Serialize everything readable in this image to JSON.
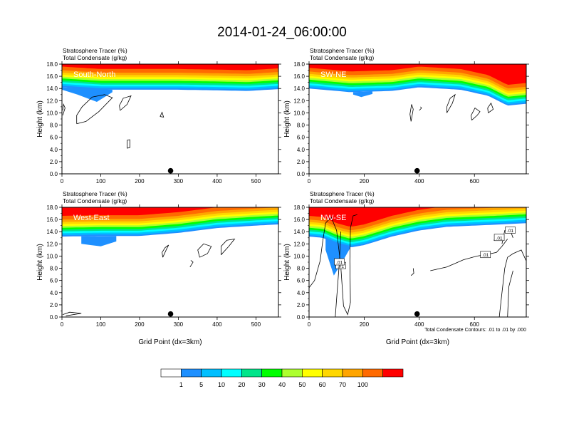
{
  "figure": {
    "title": "2014-01-24_06:00:00"
  },
  "chart_data": [
    {
      "type": "heatmap",
      "panel_label": "South-North",
      "left_title_1": "Stratosphere Tracer   (%)",
      "left_title_2": "Total Condensate   (g/kg)",
      "ylabel": "Height (km)",
      "xlabel": "",
      "xlim": [
        0,
        558
      ],
      "ylim": [
        0,
        18
      ],
      "xticks": [
        0,
        100,
        200,
        300,
        400,
        500
      ],
      "yticks": [
        0.0,
        2.0,
        4.0,
        6.0,
        8.0,
        10.0,
        12.0,
        14.0,
        16.0,
        18.0
      ],
      "marker_x": 280,
      "tracer_bands_km": {
        "x": [
          0,
          100,
          200,
          300,
          400,
          480,
          558
        ],
        "base": [
          14.2,
          13.8,
          13.8,
          13.8,
          13.7,
          13.6,
          13.9
        ]
      },
      "blue_patch_top_km": [
        {
          "x": [
            0,
            40,
            90,
            130
          ],
          "y": [
            13.8,
            13.0,
            11.8,
            13.4
          ]
        }
      ],
      "contours": [
        {
          "label": "",
          "points": [
            [
              38,
              8.2
            ],
            [
              62,
              8.6
            ],
            [
              95,
              10.2
            ],
            [
              130,
              12.5
            ],
            [
              110,
              13.0
            ],
            [
              78,
              12.6
            ],
            [
              52,
              11.0
            ],
            [
              38,
              9.6
            ],
            [
              38,
              8.2
            ]
          ]
        },
        {
          "label": "",
          "points": [
            [
              150,
              10.4
            ],
            [
              168,
              11.4
            ],
            [
              178,
              12.8
            ],
            [
              158,
              12.4
            ],
            [
              148,
              11.2
            ],
            [
              150,
              10.4
            ]
          ]
        },
        {
          "label": "",
          "points": [
            [
              253,
              9.4
            ],
            [
              258,
              10.1
            ],
            [
              262,
              9.3
            ],
            [
              253,
              9.4
            ]
          ]
        },
        {
          "label": "",
          "points": [
            [
              168,
              4.2
            ],
            [
              175,
              4.3
            ],
            [
              175,
              5.6
            ],
            [
              168,
              5.5
            ],
            [
              168,
              4.2
            ]
          ]
        },
        {
          "label": "",
          "points": [
            [
              2,
              9.6
            ],
            [
              8,
              10.8
            ],
            [
              4,
              11.4
            ],
            [
              2,
              10.4
            ]
          ]
        }
      ]
    },
    {
      "type": "heatmap",
      "panel_label": "SW-NE",
      "left_title_1": "Stratosphere Tracer   (%)",
      "left_title_2": "Total Condensate   (g/kg)",
      "ylabel": "Height (km)",
      "xlabel": "",
      "xlim": [
        0,
        788
      ],
      "ylim": [
        0,
        18
      ],
      "xticks": [
        0,
        200,
        400,
        600
      ],
      "yticks": [
        0.0,
        2.0,
        4.0,
        6.0,
        8.0,
        10.0,
        12.0,
        14.0,
        16.0,
        18.0
      ],
      "marker_x": 392,
      "tracer_bands_km": {
        "x": [
          0,
          150,
          300,
          400,
          550,
          650,
          720,
          788
        ],
        "base": [
          14.0,
          13.4,
          13.6,
          14.2,
          13.8,
          12.8,
          11.2,
          11.5
        ]
      },
      "blue_patch_top_km": [
        {
          "x": [
            160,
            190,
            230
          ],
          "y": [
            13.0,
            12.6,
            13.1
          ]
        }
      ],
      "contours": [
        {
          "label": "",
          "points": [
            [
              370,
              8.6
            ],
            [
              378,
              10.6
            ],
            [
              372,
              11.4
            ],
            [
              366,
              9.8
            ],
            [
              370,
              8.6
            ]
          ]
        },
        {
          "label": "",
          "points": [
            [
              400,
              10.4
            ],
            [
              408,
              10.8
            ],
            [
              404,
              11.0
            ]
          ]
        },
        {
          "label": "",
          "points": [
            [
              500,
              10.0
            ],
            [
              520,
              11.6
            ],
            [
              530,
              13.0
            ],
            [
              512,
              12.4
            ],
            [
              500,
              11.0
            ],
            [
              500,
              10.0
            ]
          ]
        },
        {
          "label": "",
          "points": [
            [
              590,
              8.8
            ],
            [
              610,
              9.6
            ],
            [
              620,
              10.2
            ],
            [
              602,
              10.8
            ],
            [
              588,
              9.6
            ],
            [
              590,
              8.8
            ]
          ]
        },
        {
          "label": "",
          "points": [
            [
              650,
              10.0
            ],
            [
              668,
              10.6
            ],
            [
              660,
              11.6
            ],
            [
              648,
              10.8
            ],
            [
              650,
              10.0
            ]
          ]
        }
      ]
    },
    {
      "type": "heatmap",
      "panel_label": "West-East",
      "left_title_1": "Stratosphere Tracer   (%)",
      "left_title_2": "Total Condensate   (g/kg)",
      "ylabel": "Height (km)",
      "xlabel": "Grid Point (dx=3km)",
      "xlim": [
        0,
        558
      ],
      "ylim": [
        0,
        18
      ],
      "xticks": [
        0,
        100,
        200,
        300,
        400,
        500
      ],
      "yticks": [
        0.0,
        2.0,
        4.0,
        6.0,
        8.0,
        10.0,
        12.0,
        14.0,
        16.0,
        18.0
      ],
      "marker_x": 280,
      "tracer_bands_km": {
        "x": [
          0,
          100,
          200,
          300,
          400,
          500,
          558
        ],
        "base": [
          13.2,
          13.3,
          13.3,
          13.8,
          14.6,
          15.0,
          15.2
        ]
      },
      "blue_patch_top_km": [
        {
          "x": [
            50,
            100,
            140
          ],
          "y": [
            12.0,
            11.6,
            12.4
          ]
        }
      ],
      "contours": [
        {
          "label": "",
          "points": [
            [
              260,
              9.8
            ],
            [
              270,
              11.2
            ],
            [
              275,
              11.8
            ],
            [
              266,
              11.4
            ],
            [
              258,
              10.6
            ],
            [
              260,
              9.8
            ]
          ]
        },
        {
          "label": "",
          "points": [
            [
              355,
              9.8
            ],
            [
              375,
              10.4
            ],
            [
              385,
              11.6
            ],
            [
              365,
              12.0
            ],
            [
              350,
              11.0
            ],
            [
              355,
              9.8
            ]
          ]
        },
        {
          "label": "",
          "points": [
            [
              410,
              10.2
            ],
            [
              430,
              11.6
            ],
            [
              445,
              12.8
            ],
            [
              425,
              12.6
            ],
            [
              410,
              11.6
            ],
            [
              410,
              10.2
            ]
          ]
        },
        {
          "label": "",
          "points": [
            [
              330,
              8.2
            ],
            [
              338,
              9.0
            ],
            [
              332,
              9.3
            ]
          ]
        },
        {
          "label": "",
          "points": [
            [
              2,
              0.4
            ],
            [
              20,
              0.8
            ],
            [
              50,
              0.6
            ],
            [
              10,
              0.2
            ]
          ]
        }
      ]
    },
    {
      "type": "heatmap",
      "panel_label": "NW-SE",
      "left_title_1": "Stratosphere Tracer   (%)",
      "left_title_2": "Total Condensate   (g/kg)",
      "ylabel": "Height (km)",
      "xlabel": "Grid Point (dx=3km)",
      "xlim": [
        0,
        788
      ],
      "ylim": [
        0,
        18
      ],
      "xticks": [
        0,
        200,
        400,
        600
      ],
      "yticks": [
        0.0,
        2.0,
        4.0,
        6.0,
        8.0,
        10.0,
        12.0,
        14.0,
        16.0,
        18.0
      ],
      "marker_x": 392,
      "tracer_bands_km": {
        "x": [
          0,
          50,
          100,
          150,
          200,
          300,
          400,
          500,
          600,
          700,
          788
        ],
        "base": [
          13.2,
          13.0,
          12.0,
          11.4,
          11.8,
          13.2,
          14.2,
          14.8,
          15.0,
          15.2,
          15.4
        ]
      },
      "blue_patch_top_km": [
        {
          "x": [
            60,
            90,
            120,
            150
          ],
          "y": [
            11.0,
            6.8,
            9.0,
            11.4
          ]
        }
      ],
      "footnote": "Total Condensate Contours: .01 to .01 by .000",
      "contour_labels": [
        ".01",
        ".01",
        ".01",
        ".01",
        ".01"
      ],
      "contours": [
        {
          "label": ".01",
          "points": [
            [
              0,
              4.8
            ],
            [
              20,
              6.0
            ],
            [
              40,
              9.2
            ],
            [
              50,
              12.6
            ],
            [
              60,
              15.4
            ],
            [
              80,
              16.4
            ],
            [
              100,
              14.2
            ],
            [
              115,
              8.4
            ],
            [
              125,
              1.8
            ],
            [
              140,
              0.4
            ],
            [
              150,
              2.4
            ],
            [
              148,
              9.2
            ],
            [
              150,
              14.6
            ],
            [
              160,
              16.6
            ],
            [
              175,
              16.8
            ]
          ]
        },
        {
          "label": ".01",
          "points": [
            [
              95,
              0.0
            ],
            [
              100,
              3.0
            ],
            [
              110,
              9.0
            ],
            [
              115,
              14.0
            ]
          ]
        },
        {
          "label": ".01",
          "points": [
            [
              440,
              7.6
            ],
            [
              500,
              8.2
            ],
            [
              560,
              9.4
            ],
            [
              610,
              10.0
            ],
            [
              640,
              10.2
            ],
            [
              680,
              10.6
            ],
            [
              700,
              11.6
            ],
            [
              720,
              12.8
            ]
          ]
        },
        {
          "label": ".01",
          "points": [
            [
              700,
              12.0
            ],
            [
              710,
              14.2
            ],
            [
              730,
              14.2
            ],
            [
              740,
              13.0
            ]
          ]
        },
        {
          "label": ".01",
          "points": [
            [
              670,
              12.6
            ],
            [
              690,
              13.0
            ],
            [
              700,
              13.4
            ]
          ]
        },
        {
          "label": "",
          "points": [
            [
              690,
              0.0
            ],
            [
              700,
              4.0
            ],
            [
              710,
              8.0
            ],
            [
              720,
              9.8
            ],
            [
              740,
              10.4
            ],
            [
              770,
              11.0
            ],
            [
              788,
              9.2
            ]
          ]
        },
        {
          "label": "",
          "points": [
            [
              720,
              0.0
            ],
            [
              725,
              5.0
            ],
            [
              740,
              7.6
            ]
          ]
        },
        {
          "label": "",
          "points": [
            [
              370,
              6.8
            ],
            [
              380,
              7.2
            ],
            [
              378,
              8.0
            ]
          ]
        }
      ]
    }
  ],
  "colorbar": {
    "levels": [
      "1",
      "5",
      "10",
      "20",
      "30",
      "40",
      "50",
      "60",
      "70",
      "100"
    ],
    "colors": [
      "#ffffff",
      "#1e90ff",
      "#00bfff",
      "#00ffff",
      "#00e58a",
      "#00ff00",
      "#adff2f",
      "#ffff00",
      "#ffd700",
      "#ffa500",
      "#ff6a00",
      "#ff0000"
    ]
  }
}
